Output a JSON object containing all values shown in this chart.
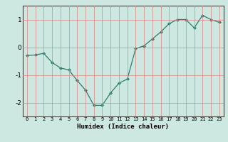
{
  "x": [
    0,
    1,
    2,
    3,
    4,
    5,
    6,
    7,
    8,
    9,
    10,
    11,
    12,
    13,
    14,
    15,
    16,
    17,
    18,
    19,
    20,
    21,
    22,
    23
  ],
  "y": [
    -0.3,
    -0.28,
    -0.22,
    -0.55,
    -0.75,
    -0.82,
    -1.2,
    -1.55,
    -2.1,
    -2.1,
    -1.65,
    -1.3,
    -1.15,
    -0.05,
    0.05,
    0.3,
    0.55,
    0.85,
    1.0,
    1.0,
    0.7,
    1.15,
    1.0,
    0.9
  ],
  "xlabel": "Humidex (Indice chaleur)",
  "line_color": "#2e7d6e",
  "marker": "D",
  "markersize": 2.0,
  "linewidth": 0.9,
  "bg_color": "#cce8e0",
  "grid_color": "#e08080",
  "ylim": [
    -2.5,
    1.5
  ],
  "xlim": [
    -0.5,
    23.5
  ],
  "yticks": [
    -2,
    -1,
    0,
    1
  ],
  "xticks": [
    0,
    1,
    2,
    3,
    4,
    5,
    6,
    7,
    8,
    9,
    10,
    11,
    12,
    13,
    14,
    15,
    16,
    17,
    18,
    19,
    20,
    21,
    22,
    23
  ],
  "xlabel_fontsize": 6.5,
  "ytick_fontsize": 6.5,
  "xtick_fontsize": 5.0
}
